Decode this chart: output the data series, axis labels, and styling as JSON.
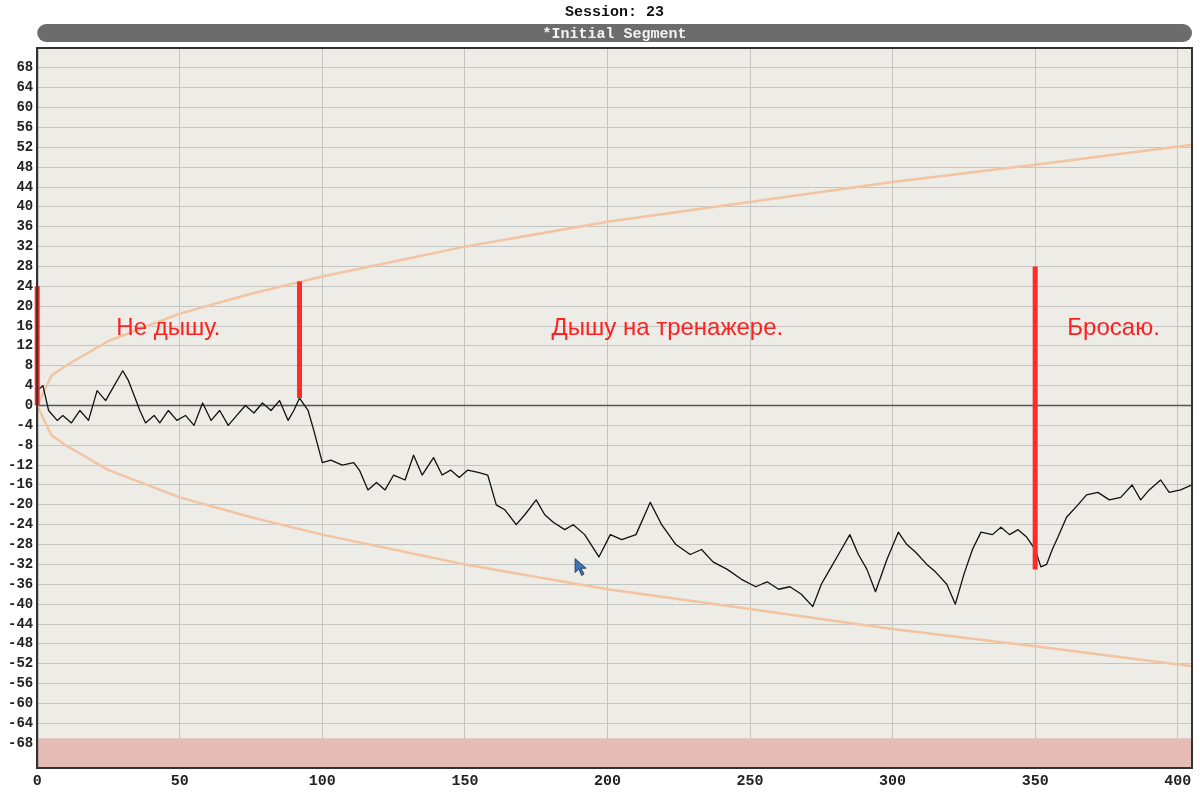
{
  "chart_data": {
    "type": "line",
    "title": "Session: 23",
    "subtitle": "*Initial Segment",
    "xlim": [
      0,
      405
    ],
    "xticks": [
      0,
      50,
      100,
      150,
      200,
      250,
      300,
      350,
      400
    ],
    "ylim": [
      -73,
      72
    ],
    "yticks": [
      -68,
      -64,
      -60,
      -56,
      -52,
      -48,
      -44,
      -40,
      -36,
      -32,
      -28,
      -24,
      -20,
      -16,
      -12,
      -8,
      -4,
      0,
      4,
      8,
      12,
      16,
      20,
      24,
      28,
      32,
      36,
      40,
      44,
      48,
      52,
      56,
      60,
      64,
      68
    ],
    "grid": true,
    "marker": "none",
    "line_style": "solid",
    "ref_lines": [
      {
        "axis": "y",
        "value": 0,
        "color": "#555555"
      }
    ],
    "bands": [
      {
        "axis": "y",
        "from": -73,
        "to": -67,
        "color": "#e6bcb6"
      }
    ],
    "annotations": [
      "Не дышу.",
      "Дышу на тренажере.",
      "Бросаю."
    ],
    "series": [
      {
        "color": "#f2c4a2",
        "x": [
          0,
          5,
          10,
          25,
          50,
          75,
          100,
          150,
          200,
          250,
          300,
          350,
          405
        ],
        "values": [
          0,
          6,
          8,
          13,
          18.5,
          22.5,
          26,
          32,
          37,
          41,
          45,
          48.5,
          52.5
        ]
      },
      {
        "color": "#f2c4a2",
        "x": [
          0,
          5,
          10,
          25,
          50,
          75,
          100,
          150,
          200,
          250,
          300,
          350,
          405
        ],
        "values": [
          0,
          -6,
          -8,
          -13,
          -18.5,
          -22.5,
          -26,
          -32,
          -37,
          -41,
          -45,
          -48.5,
          -52.5
        ]
      },
      {
        "color": "#111111",
        "x": [
          0,
          2,
          4,
          7,
          9,
          12,
          15,
          18,
          21,
          24,
          27,
          29,
          30,
          32,
          34,
          36,
          38,
          41,
          43,
          46,
          49,
          52,
          55,
          58,
          61,
          64,
          67,
          70,
          73,
          76,
          79,
          82,
          85,
          88,
          90,
          92,
          95,
          97,
          100,
          103,
          107,
          111,
          113,
          116,
          119,
          122,
          125,
          129,
          132,
          135,
          139,
          142,
          145,
          148,
          151,
          155,
          158,
          161,
          164,
          168,
          171,
          175,
          178,
          181,
          185,
          188,
          192,
          197,
          201,
          205,
          210,
          215,
          219,
          224,
          229,
          233,
          237,
          242,
          247,
          252,
          256,
          260,
          264,
          268,
          272,
          275,
          278,
          281,
          285,
          288,
          291,
          294,
          298,
          302,
          305,
          308,
          312,
          315,
          319,
          322,
          325,
          328,
          331,
          335,
          338,
          341,
          344,
          347,
          350,
          352,
          354,
          356,
          358,
          361,
          365,
          368,
          372,
          376,
          380,
          384,
          387,
          390,
          394,
          397,
          401,
          405
        ],
        "values": [
          3,
          4,
          -1,
          -3,
          -2,
          -3.5,
          -1,
          -3,
          3,
          1,
          4,
          6,
          7,
          5,
          2,
          -1,
          -3.5,
          -2,
          -3.5,
          -1,
          -3,
          -2,
          -4,
          0.5,
          -3,
          -1,
          -4,
          -2,
          0,
          -1.5,
          0.5,
          -1,
          1,
          -3,
          -1,
          1.5,
          -1,
          -5,
          -11.5,
          -11,
          -12,
          -11.5,
          -13,
          -17,
          -15.5,
          -17,
          -14,
          -15,
          -10,
          -14,
          -10.5,
          -14,
          -13,
          -14.5,
          -13,
          -13.5,
          -14,
          -20,
          -21,
          -24,
          -22,
          -19,
          -22,
          -23.5,
          -25,
          -24,
          -26,
          -30.5,
          -26,
          -27,
          -26,
          -19.5,
          -24,
          -28,
          -30,
          -29,
          -31.5,
          -33,
          -35,
          -36.5,
          -35.5,
          -37,
          -36.5,
          -38,
          -40.5,
          -36,
          -33,
          -30,
          -26,
          -30,
          -33,
          -37.5,
          -31,
          -25.5,
          -28,
          -29.5,
          -32,
          -33.5,
          -36,
          -40,
          -34,
          -29,
          -25.5,
          -26,
          -24.5,
          -26,
          -25,
          -26.5,
          -29,
          -32.5,
          -32,
          -29,
          -26.5,
          -22.5,
          -20,
          -18,
          -17.5,
          -19,
          -18.5,
          -16,
          -19,
          -17,
          -15,
          -17.5,
          -17,
          -16
        ]
      },
      {
        "color": "#ff2a2a",
        "x": [
          0,
          0
        ],
        "values": [
          0,
          24
        ]
      },
      {
        "color": "#ff2a2a",
        "x": [
          92,
          92
        ],
        "values": [
          1.5,
          25
        ]
      },
      {
        "color": "#ff2a2a",
        "x": [
          350,
          350
        ],
        "values": [
          -33,
          28
        ]
      }
    ]
  }
}
